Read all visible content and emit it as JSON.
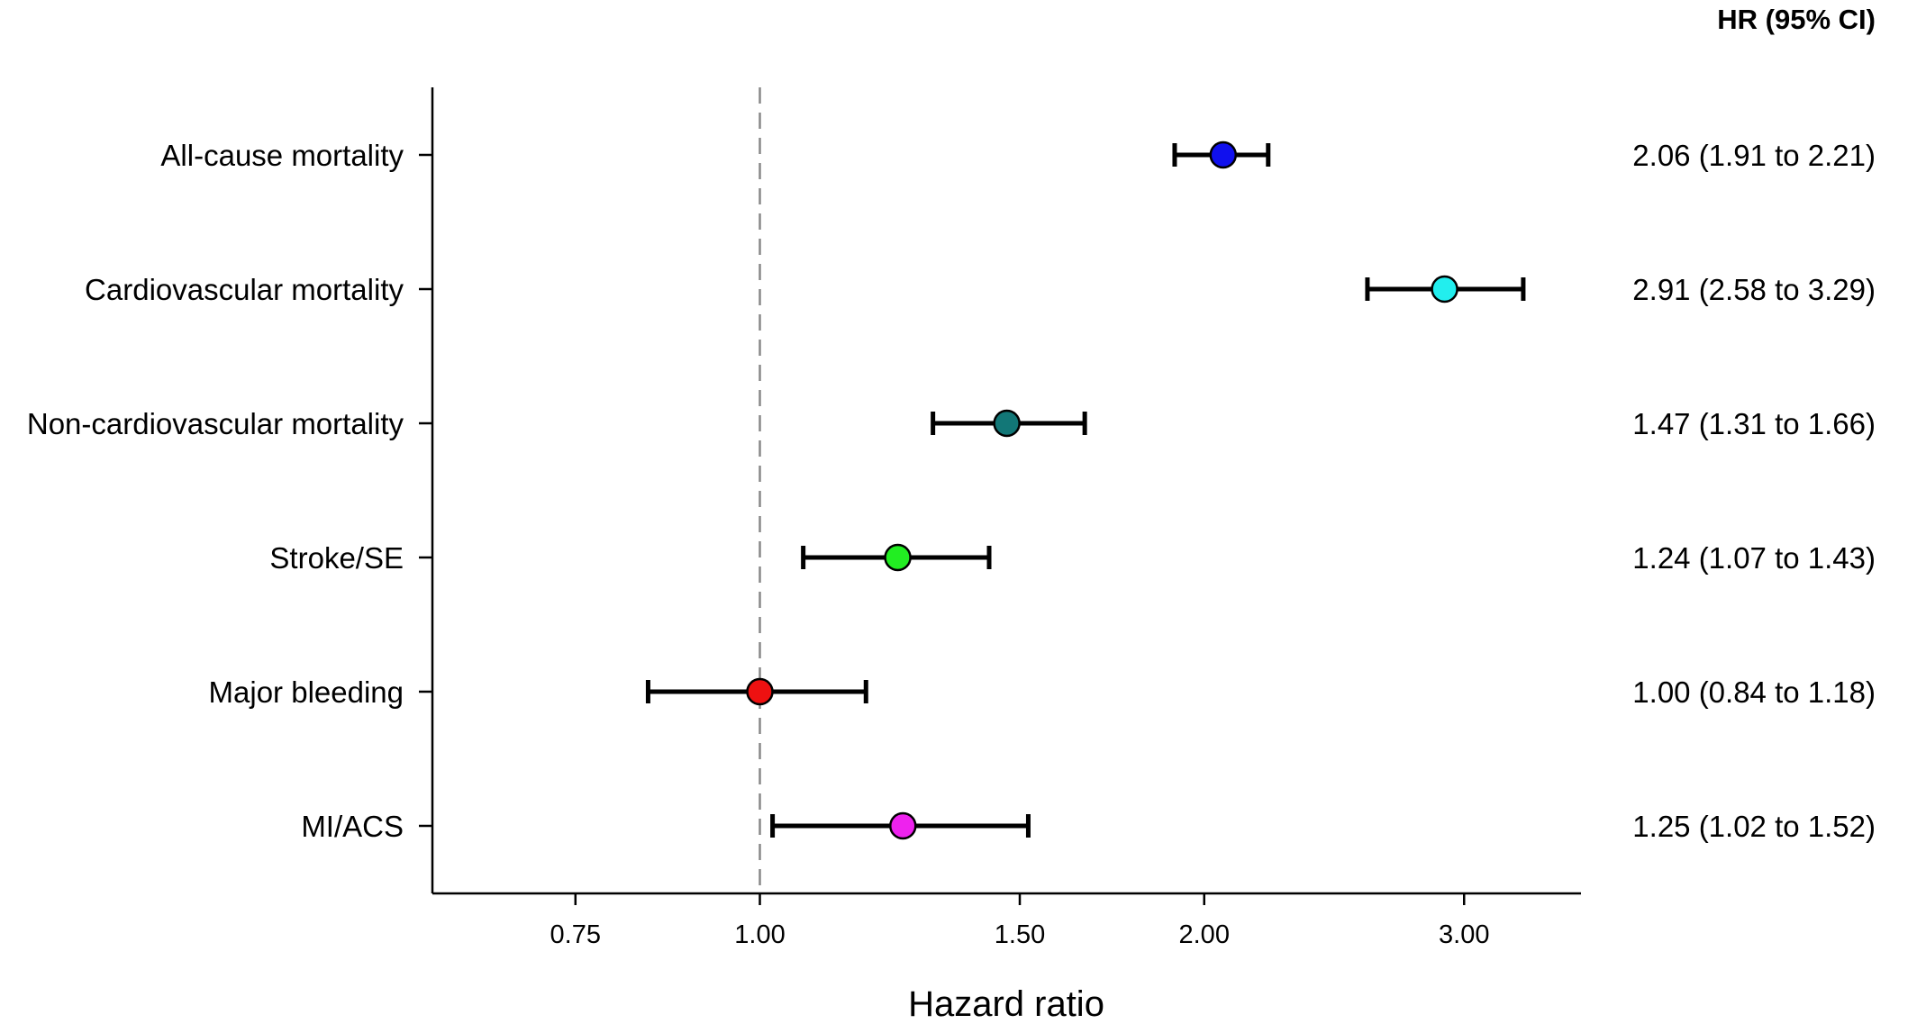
{
  "chart_data": {
    "type": "scatter",
    "xlabel": "Hazard ratio",
    "column_header": "HR (95% CI)",
    "x_scale": "log",
    "xlim": [
      0.6,
      3.6
    ],
    "x_ticks": [
      0.75,
      1.0,
      1.5,
      2.0,
      3.0
    ],
    "x_tick_labels": [
      "0.75",
      "1.00",
      "1.50",
      "2.00",
      "3.00"
    ],
    "reference_line": 1.0,
    "rows": [
      {
        "label": "All-cause mortality",
        "hr": 2.06,
        "lower": 1.91,
        "upper": 2.21,
        "text": "2.06 (1.91 to 2.21)",
        "color": "#1010ee"
      },
      {
        "label": "Cardiovascular mortality",
        "hr": 2.91,
        "lower": 2.58,
        "upper": 3.29,
        "text": "2.91 (2.58 to 3.29)",
        "color": "#22eeee"
      },
      {
        "label": "Non-cardiovascular mortality",
        "hr": 1.47,
        "lower": 1.31,
        "upper": 1.66,
        "text": "1.47 (1.31 to 1.66)",
        "color": "#127777"
      },
      {
        "label": "Stroke/SE",
        "hr": 1.24,
        "lower": 1.07,
        "upper": 1.43,
        "text": "1.24 (1.07 to 1.43)",
        "color": "#22ee22"
      },
      {
        "label": "Major bleeding",
        "hr": 1.0,
        "lower": 0.84,
        "upper": 1.18,
        "text": "1.00 (0.84 to 1.18)",
        "color": "#ee1111"
      },
      {
        "label": "MI/ACS",
        "hr": 1.25,
        "lower": 1.02,
        "upper": 1.52,
        "text": "1.25 (1.02 to 1.52)",
        "color": "#ee22ee"
      }
    ]
  }
}
